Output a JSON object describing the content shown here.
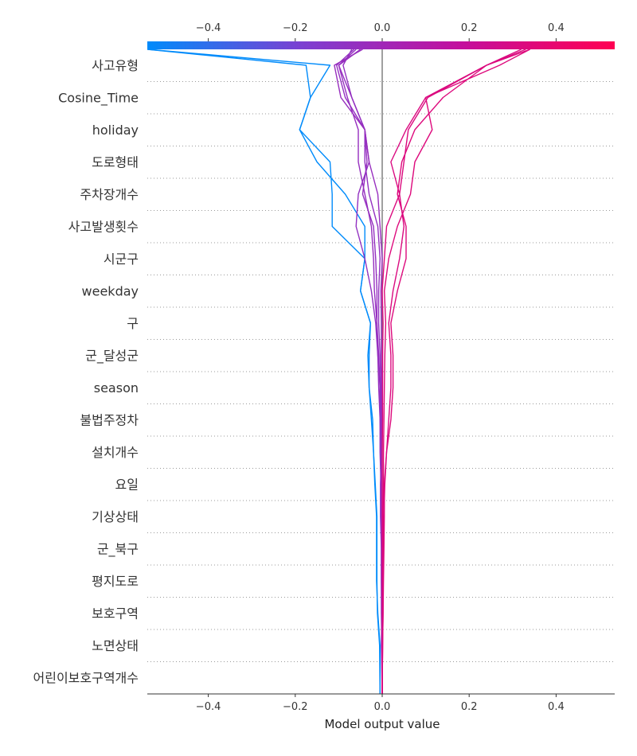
{
  "chart_data": {
    "type": "line",
    "xlabel": "Model output value",
    "xlim": [
      -0.54,
      0.54
    ],
    "grid": "dotted horizontal per feature",
    "colorbar": {
      "position": "top",
      "colors": [
        "#008bfb",
        "#7d3fd1",
        "#c2109e",
        "#ff0052"
      ]
    },
    "x_ticks": [
      -0.4,
      -0.2,
      0.0,
      0.2,
      0.4
    ],
    "x_tick_labels": [
      "−0.4",
      "−0.2",
      "0.0",
      "0.2",
      "0.4"
    ],
    "features": [
      "사고유형",
      "Cosine_Time",
      "holiday",
      "도로형태",
      "주차장개수",
      "사고발생횟수",
      "시군구",
      "weekday",
      "구",
      "군_달성군",
      "season",
      "불법주정차",
      "설치개수",
      "요일",
      "기상상태",
      "군_북구",
      "평지도로",
      "보호구역",
      "노면상태",
      "어린이보호구역개수"
    ],
    "base_value": 0.0,
    "series": [
      {
        "final": -0.54,
        "values": [
          -0.54,
          -0.12,
          -0.165,
          -0.19,
          -0.12,
          -0.115,
          -0.115,
          -0.04,
          -0.05,
          -0.027,
          -0.033,
          -0.03,
          -0.022,
          -0.02,
          -0.017,
          -0.013,
          -0.013,
          -0.013,
          -0.01,
          -0.005,
          -0.005
        ]
      },
      {
        "final": -0.54,
        "values": [
          -0.54,
          -0.175,
          -0.165,
          -0.19,
          -0.15,
          -0.085,
          -0.04,
          -0.04,
          -0.05,
          -0.027,
          -0.03,
          -0.03,
          -0.025,
          -0.02,
          -0.016,
          -0.012,
          -0.012,
          -0.012,
          -0.011,
          -0.006,
          -0.005
        ]
      },
      {
        "final": -0.07,
        "values": [
          -0.07,
          -0.09,
          -0.07,
          -0.04,
          -0.03,
          -0.055,
          -0.06,
          -0.04,
          -0.025,
          -0.015,
          -0.01,
          -0.005,
          -0.005,
          -0.002,
          -0.004,
          -0.004,
          -0.002,
          -0.002,
          -0.001,
          -0.002,
          0.0
        ]
      },
      {
        "final": -0.06,
        "values": [
          -0.06,
          -0.1,
          -0.07,
          -0.04,
          -0.035,
          -0.045,
          -0.02,
          -0.015,
          -0.012,
          -0.012,
          -0.008,
          -0.005,
          -0.004,
          -0.003,
          -0.002,
          -0.002,
          -0.001,
          -0.001,
          -0.001,
          -0.001,
          0.0
        ]
      },
      {
        "final": -0.05,
        "values": [
          -0.05,
          -0.1,
          -0.08,
          -0.055,
          -0.055,
          -0.04,
          -0.025,
          -0.02,
          -0.018,
          -0.012,
          -0.01,
          -0.008,
          -0.005,
          -0.005,
          -0.003,
          -0.003,
          -0.002,
          -0.002,
          -0.002,
          -0.001,
          0.0
        ]
      },
      {
        "final": -0.065,
        "values": [
          -0.065,
          -0.105,
          -0.085,
          -0.04,
          -0.04,
          -0.03,
          -0.01,
          -0.005,
          -0.008,
          -0.008,
          -0.005,
          -0.003,
          -0.002,
          -0.002,
          -0.001,
          -0.001,
          -0.001,
          -0.001,
          -0.001,
          0.0,
          0.0
        ]
      },
      {
        "final": -0.045,
        "values": [
          -0.045,
          -0.11,
          -0.095,
          -0.04,
          -0.03,
          -0.01,
          -0.005,
          0.0,
          -0.003,
          -0.002,
          -0.002,
          -0.001,
          -0.001,
          -0.001,
          0.0,
          0.0,
          0.0,
          0.0,
          0.0,
          0.0,
          0.0
        ]
      },
      {
        "final": 0.34,
        "values": [
          0.34,
          0.27,
          0.1,
          0.115,
          0.075,
          0.065,
          0.035,
          0.015,
          0.005,
          0.008,
          0.006,
          0.005,
          0.004,
          0.003,
          0.003,
          0.002,
          0.002,
          0.002,
          0.001,
          0.001,
          0.0
        ]
      },
      {
        "final": 0.34,
        "values": [
          0.34,
          0.24,
          0.14,
          0.075,
          0.045,
          0.035,
          0.055,
          0.055,
          0.035,
          0.02,
          0.025,
          0.025,
          0.02,
          0.01,
          0.005,
          0.005,
          0.004,
          0.003,
          0.002,
          0.001,
          0.0
        ]
      },
      {
        "final": 0.32,
        "values": [
          0.32,
          0.24,
          0.1,
          0.055,
          0.02,
          0.04,
          0.05,
          0.04,
          0.025,
          0.015,
          0.02,
          0.02,
          0.015,
          0.01,
          0.006,
          0.004,
          0.003,
          0.002,
          0.002,
          0.001,
          0.0
        ]
      },
      {
        "final": 0.33,
        "values": [
          0.33,
          0.24,
          0.105,
          0.06,
          0.05,
          0.04,
          0.01,
          0.005,
          0.0,
          0.002,
          0.001,
          0.001,
          0.001,
          0.0,
          0.0,
          0.0,
          0.0,
          0.0,
          0.0,
          0.0,
          0.0
        ]
      }
    ]
  }
}
